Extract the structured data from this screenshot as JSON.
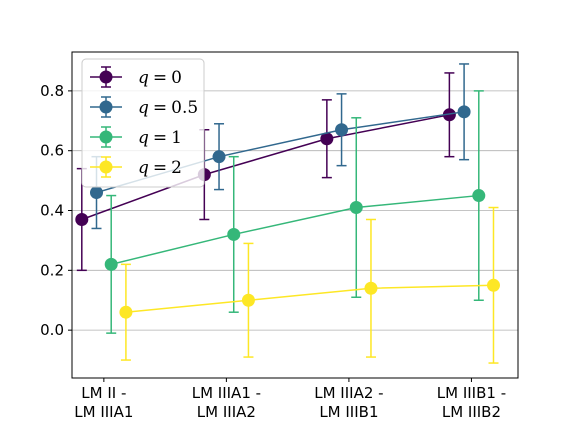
{
  "chart_data": {
    "type": "line",
    "title": "",
    "xlabel": "",
    "ylabel": "",
    "categories": [
      [
        "LM II -",
        "LM IIIA1"
      ],
      [
        "LM IIIA1 -",
        "LM IIIA2"
      ],
      [
        "LM IIIA2 -",
        "LM IIIB1"
      ],
      [
        "LM IIIB1 -",
        "LM IIIB2"
      ]
    ],
    "ylim": [
      -0.16,
      0.93
    ],
    "yticks": [
      "0.0",
      "0.2",
      "0.4",
      "0.6",
      "0.8"
    ],
    "grid": "horizontal",
    "legend_position": "top-left",
    "series": [
      {
        "name_prefix": "q",
        "name_op": "=",
        "name_value": "0",
        "color": "#440154",
        "offset": -0.12,
        "values": [
          0.37,
          0.52,
          0.64,
          0.72
        ],
        "lower": [
          0.2,
          0.37,
          0.51,
          0.58
        ],
        "upper": [
          0.54,
          0.67,
          0.77,
          0.86
        ]
      },
      {
        "name_prefix": "q",
        "name_op": "=",
        "name_value": "0.5",
        "color": "#31688e",
        "offset": 0.0,
        "values": [
          0.46,
          0.58,
          0.67,
          0.73
        ],
        "lower": [
          0.34,
          0.47,
          0.55,
          0.57
        ],
        "upper": [
          0.58,
          0.69,
          0.79,
          0.89
        ]
      },
      {
        "name_prefix": "q",
        "name_op": "=",
        "name_value": "1",
        "color": "#35b779",
        "offset": 0.12,
        "values": [
          0.22,
          0.32,
          0.41,
          0.45
        ],
        "lower": [
          -0.01,
          0.06,
          0.11,
          0.1
        ],
        "upper": [
          0.45,
          0.58,
          0.71,
          0.8
        ]
      },
      {
        "name_prefix": "q",
        "name_op": "=",
        "name_value": "2",
        "color": "#fde725",
        "offset": 0.24,
        "values": [
          0.06,
          0.1,
          0.14,
          0.15
        ],
        "lower": [
          -0.1,
          -0.09,
          -0.09,
          -0.11
        ],
        "upper": [
          0.22,
          0.29,
          0.37,
          0.41
        ]
      }
    ]
  }
}
